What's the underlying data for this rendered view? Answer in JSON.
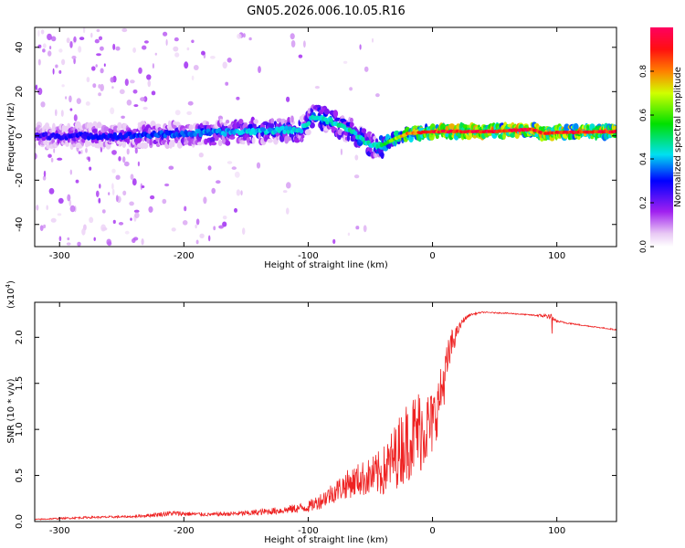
{
  "title": "GN05.2026.006.10.05.R16",
  "colorbar": {
    "label": "Normalized spectral amplitude",
    "ticks": [
      "0.0",
      "0.2",
      "0.4",
      "0.6",
      "0.8"
    ],
    "tick_values": [
      0.0,
      0.2,
      0.4,
      0.6,
      0.8
    ],
    "range": [
      0,
      1
    ]
  },
  "chart_data": [
    {
      "type": "heatmap",
      "name": "spectrogram",
      "xlabel": "Height of straight line (km)",
      "ylabel": "Frequency (Hz)",
      "xlim": [
        -320,
        148
      ],
      "ylim": [
        -50,
        49
      ],
      "xticks": [
        -300,
        -200,
        -100,
        0,
        100
      ],
      "xtick_labels": [
        "-300",
        "-200",
        "-100",
        "0",
        "100"
      ],
      "yticks": [
        -40,
        -20,
        0,
        20,
        40
      ],
      "ytick_labels": [
        "-40",
        "-20",
        "0",
        "20",
        "40"
      ],
      "ridge_x": [
        -320,
        -250,
        -200,
        -150,
        -105,
        -95,
        -80,
        -65,
        -55,
        -48,
        -40,
        -30,
        -20,
        -10,
        0,
        20,
        50,
        80,
        90,
        100,
        148
      ],
      "ridge_y": [
        0,
        0,
        1,
        2,
        3,
        9,
        6,
        2,
        -2,
        -5,
        -4,
        -1,
        1,
        1.5,
        2,
        2,
        2,
        3,
        1,
        1.5,
        2
      ],
      "ridge_amplitude": [
        0.25,
        0.3,
        0.35,
        0.4,
        0.42,
        0.45,
        0.45,
        0.45,
        0.45,
        0.45,
        0.5,
        0.65,
        0.8,
        0.85,
        0.9,
        0.92,
        0.93,
        0.92,
        0.85,
        0.9,
        0.9
      ]
    },
    {
      "type": "line",
      "name": "snr",
      "title": "",
      "xlabel": "Height of straight line (km)",
      "ylabel": "SNR (10 * v/v)",
      "y_multiplier": "(x10",
      "y_multiplier_exp": "4",
      "y_multiplier_close": ")",
      "xlim": [
        -320,
        148
      ],
      "ylim": [
        0.0,
        2.38
      ],
      "xticks": [
        -300,
        -200,
        -100,
        0,
        100
      ],
      "xtick_labels": [
        "-300",
        "-200",
        "-100",
        "0",
        "100"
      ],
      "yticks": [
        0.0,
        0.5,
        1.0,
        1.5,
        2.0
      ],
      "ytick_labels": [
        "0.0",
        "0.5",
        "1.0",
        "1.5",
        "2.0"
      ],
      "series": [
        {
          "name": "SNR",
          "color": "#ee2222",
          "x": [
            -320,
            -280,
            -240,
            -210,
            -180,
            -150,
            -120,
            -100,
            -90,
            -80,
            -70,
            -60,
            -50,
            -40,
            -30,
            -20,
            -10,
            0,
            5,
            10,
            15,
            20,
            25,
            30,
            40,
            60,
            80,
            95,
            100,
            120,
            148
          ],
          "y": [
            0.02,
            0.04,
            0.05,
            0.08,
            0.07,
            0.08,
            0.11,
            0.14,
            0.2,
            0.28,
            0.35,
            0.4,
            0.42,
            0.45,
            0.6,
            0.75,
            0.85,
            0.95,
            1.2,
            1.5,
            1.85,
            2.05,
            2.18,
            2.24,
            2.27,
            2.26,
            2.24,
            2.22,
            2.17,
            2.13,
            2.08
          ],
          "noise": [
            0.01,
            0.02,
            0.02,
            0.05,
            0.03,
            0.05,
            0.07,
            0.1,
            0.15,
            0.2,
            0.25,
            0.3,
            0.35,
            0.45,
            0.6,
            0.75,
            0.8,
            0.6,
            0.5,
            0.45,
            0.3,
            0.1,
            0.05,
            0.02,
            0.01,
            0.01,
            0.01,
            0.05,
            0.02,
            0.01,
            0.01
          ]
        }
      ]
    }
  ]
}
